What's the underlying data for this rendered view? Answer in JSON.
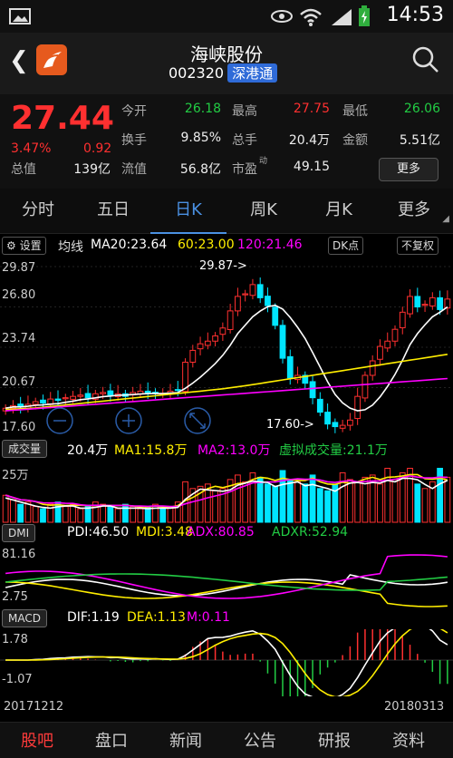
{
  "status_bar": {
    "time": "14:53",
    "icons": [
      "image-icon",
      "eye-icon",
      "wifi-icon",
      "signal-icon",
      "battery-charging-icon"
    ]
  },
  "header": {
    "title": "海峡股份",
    "code": "002320",
    "badge": "深港通",
    "icons": [
      "back-arrow-icon",
      "app-logo",
      "search-icon"
    ]
  },
  "quote": {
    "price": "27.44",
    "pct": "3.47%",
    "change": "0.92",
    "fields": [
      {
        "label": "今开",
        "value": "26.18",
        "color": "#22cc44"
      },
      {
        "label": "最高",
        "value": "27.75",
        "color": "#ff3030"
      },
      {
        "label": "最低",
        "value": "26.06",
        "color": "#22cc44"
      },
      {
        "label": "换手",
        "value": "9.85%",
        "color": "#eeeeee"
      },
      {
        "label": "总手",
        "value": "20.4万",
        "color": "#eeeeee"
      },
      {
        "label": "金额",
        "value": "5.51亿",
        "color": "#eeeeee"
      },
      {
        "label": "总值",
        "value": "139亿",
        "color": "#eeeeee"
      },
      {
        "label": "流值",
        "value": "56.8亿",
        "color": "#eeeeee"
      },
      {
        "label": "市盈",
        "value": "49.15",
        "color": "#eeeeee"
      }
    ],
    "pe_sup": "动",
    "more_label": "更多"
  },
  "tabs": [
    {
      "label": "分时",
      "active": false
    },
    {
      "label": "五日",
      "active": false
    },
    {
      "label": "日K",
      "active": true
    },
    {
      "label": "周K",
      "active": false
    },
    {
      "label": "月K",
      "active": false
    },
    {
      "label": "更多",
      "active": false
    }
  ],
  "chart_toolbar": {
    "settings_label": "设置",
    "ma_label": "均线",
    "ma20": "MA20:23.64",
    "ma60": "60:23.00",
    "ma120": "120:21.46",
    "dk_label": "DK点",
    "adjust_label": "不复权"
  },
  "price_axis": [
    "29.87",
    "26.80",
    "23.74",
    "20.67",
    "17.60"
  ],
  "annotations": {
    "high": "29.87->",
    "low": "17.60->"
  },
  "volume_panel": {
    "button": "成交量",
    "vol": "20.4万",
    "ma1": "MA1:15.8万",
    "ma2": "MA2:13.0万",
    "virtual": "虚拟成交量:21.1万",
    "axis": "25万"
  },
  "dmi_panel": {
    "button": "DMI",
    "pdi": "PDI:46.50",
    "mdi": "MDI:3.48",
    "adx": "ADX:80.85",
    "adxr": "ADXR:52.94",
    "axis_top": "81.16",
    "axis_bottom": "2.75"
  },
  "macd_panel": {
    "button": "MACD",
    "dif": "DIF:1.19",
    "dea": "DEA:1.13",
    "m": "M:0.11",
    "axis_top": "1.78",
    "axis_bottom": "-1.07"
  },
  "dates": {
    "start": "20171212",
    "end": "20180313"
  },
  "bottom_nav": [
    {
      "label": "股吧",
      "active": true
    },
    {
      "label": "盘口",
      "active": false
    },
    {
      "label": "新闻",
      "active": false
    },
    {
      "label": "公告",
      "active": false
    },
    {
      "label": "研报",
      "active": false
    },
    {
      "label": "资料",
      "active": false
    }
  ],
  "colors": {
    "up": "#ff3030",
    "down": "#00e5ff",
    "ma20": "#ffffff",
    "ma60": "#ffee00",
    "ma120": "#ff00ff",
    "accent": "#4a90e2"
  },
  "chart_data": {
    "type": "candlestick",
    "x_start": "20171212",
    "x_end": "20180313",
    "ylim": [
      17.6,
      29.87
    ],
    "close": [
      19.1,
      19.3,
      19.2,
      19.4,
      19.6,
      19.5,
      19.8,
      19.7,
      19.9,
      20.0,
      20.1,
      19.9,
      20.2,
      20.3,
      20.1,
      20.2,
      20.0,
      20.3,
      20.4,
      20.2,
      20.3,
      20.2,
      20.4,
      20.5,
      22.6,
      23.5,
      24.0,
      24.2,
      24.6,
      25.2,
      26.5,
      27.6,
      27.8,
      28.5,
      27.5,
      26.9,
      25.4,
      22.9,
      21.4,
      21.6,
      21.0,
      19.9,
      18.8,
      17.9,
      17.7,
      17.8,
      18.2,
      20.0,
      21.6,
      22.7,
      23.8,
      24.2,
      25.1,
      26.4,
      27.6,
      26.8,
      27.0,
      27.5,
      26.6,
      27.4
    ],
    "volume": [
      12,
      10,
      8,
      9,
      7,
      6,
      8,
      9,
      7,
      8,
      6,
      7,
      9,
      8,
      7,
      6,
      8,
      7,
      6,
      7,
      8,
      6,
      7,
      9,
      18,
      15,
      16,
      17,
      14,
      15,
      19,
      21,
      18,
      22,
      20,
      17,
      16,
      23,
      19,
      18,
      17,
      21,
      15,
      14,
      17,
      22,
      19,
      18,
      20,
      21,
      17,
      24,
      19,
      22,
      24,
      17,
      15,
      18,
      24,
      20
    ],
    "volume_ylim": [
      0,
      25
    ]
  }
}
